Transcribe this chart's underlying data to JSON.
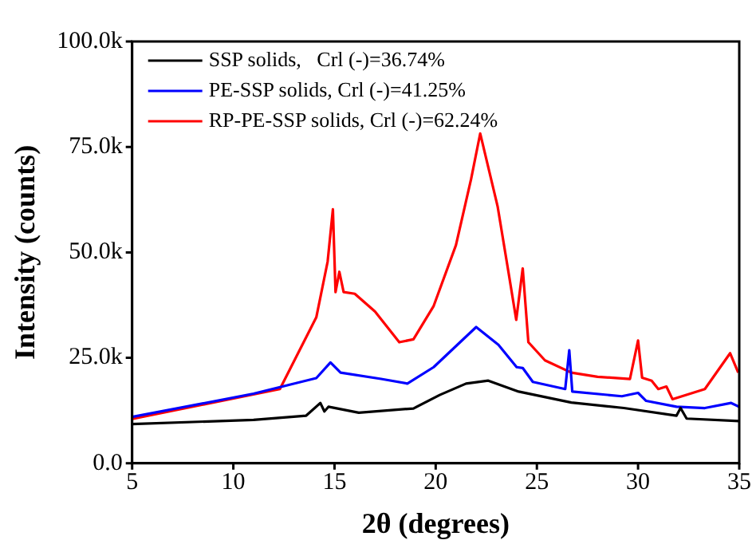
{
  "chart_data": {
    "type": "line",
    "xlabel": "2θ (degrees)",
    "ylabel": "Intensity (counts)",
    "xlim": [
      5,
      35
    ],
    "xticks": [
      5,
      10,
      15,
      20,
      25,
      30,
      35
    ],
    "ylim": [
      0,
      100000
    ],
    "yticks": [
      {
        "value": 0,
        "label": "0.0"
      },
      {
        "value": 25000,
        "label": "25.0k"
      },
      {
        "value": 50000,
        "label": "50.0k"
      },
      {
        "value": 75000,
        "label": "75.0k"
      },
      {
        "value": 100000,
        "label": "100.0k"
      }
    ],
    "legend": "top left",
    "grid": false,
    "marker": "none",
    "line_style": "solid",
    "series": [
      {
        "name": "SSP solids,   Crl (-)=36.74%",
        "color": "#000000",
        "x": [
          5,
          11.0,
          13.6,
          14.3,
          14.5,
          14.7,
          16.2,
          18.9,
          20.2,
          21.5,
          22.6,
          24.1,
          26.7,
          29.3,
          31.9,
          32.1,
          32.4,
          35
        ],
        "values": [
          9300,
          10300,
          11300,
          14300,
          12300,
          13400,
          12000,
          13000,
          16200,
          18900,
          19600,
          17000,
          14400,
          13100,
          11300,
          13100,
          10600,
          10000
        ]
      },
      {
        "name": "PE-SSP solids, Crl (-)=41.25%",
        "color": "#0000ff",
        "x": [
          5,
          11.0,
          14.1,
          14.8,
          15.3,
          17.3,
          18.6,
          19.9,
          22.0,
          23.1,
          24.0,
          24.3,
          24.8,
          26.4,
          26.6,
          26.75,
          29.2,
          30.0,
          30.4,
          31.9,
          33.3,
          34.6,
          35
        ],
        "values": [
          11000,
          16500,
          20200,
          23900,
          21500,
          20000,
          18900,
          22800,
          32300,
          28100,
          22800,
          22600,
          19300,
          17600,
          26800,
          17000,
          15900,
          16700,
          14800,
          13400,
          13100,
          14300,
          13400
        ]
      },
      {
        "name": "RP-PE-SSP solids, Crl (-)=62.24%",
        "color": "#ff0000",
        "x": [
          5,
          12.3,
          14.1,
          14.66,
          14.92,
          15.05,
          15.24,
          15.45,
          16.0,
          17.0,
          18.2,
          18.9,
          19.9,
          21.0,
          21.75,
          22.2,
          23.06,
          23.6,
          23.98,
          24.3,
          24.58,
          25.4,
          26.7,
          28.0,
          29.6,
          30.0,
          30.2,
          30.67,
          31.0,
          31.4,
          31.7,
          33.3,
          34.55,
          34.95
        ],
        "values": [
          10500,
          17600,
          34600,
          47800,
          60200,
          40600,
          45400,
          40600,
          40200,
          36000,
          28700,
          29400,
          37300,
          51700,
          67400,
          78200,
          60900,
          45200,
          34000,
          46200,
          28700,
          24400,
          21500,
          20500,
          20000,
          29100,
          20300,
          19600,
          17600,
          18200,
          15200,
          17600,
          26100,
          21500
        ]
      }
    ]
  }
}
